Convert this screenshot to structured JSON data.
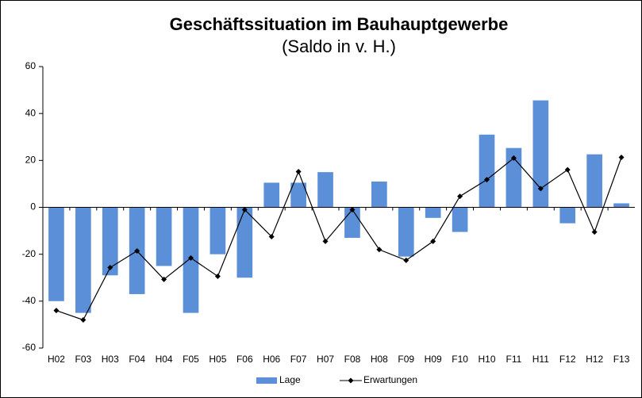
{
  "chart_data": {
    "type": "bar_line",
    "title": "Geschäftssituation im Bauhauptgewerbe",
    "subtitle": "(Saldo in v. H.)",
    "categories": [
      "H02",
      "F03",
      "H03",
      "F04",
      "H04",
      "F05",
      "H05",
      "F06",
      "H06",
      "F07",
      "H07",
      "F08",
      "H08",
      "F09",
      "H09",
      "F10",
      "H10",
      "F11",
      "H11",
      "F12",
      "H12",
      "F13"
    ],
    "series": [
      {
        "name": "Lage",
        "type": "bar",
        "color": "#5b8fd8",
        "values": [
          -40,
          -45,
          -29,
          -37,
          -25,
          -45,
          -20,
          -30,
          10.5,
          10.5,
          15,
          -13,
          11,
          -21,
          -4.5,
          -10.5,
          31,
          25.3,
          45.6,
          -6.8,
          22.6,
          1.7
        ]
      },
      {
        "name": "Erwartungen",
        "type": "line",
        "color": "#000000",
        "values": [
          -44,
          -48,
          -25.7,
          -18.6,
          -30.7,
          -21.6,
          -29.4,
          -1,
          -12.5,
          15.2,
          -14.5,
          -1,
          -18,
          -22.6,
          -14.5,
          4.7,
          11.8,
          21,
          8,
          16,
          -10.5,
          21.3
        ]
      }
    ],
    "ylim": [
      -60,
      60
    ],
    "yticks": [
      -60,
      -40,
      -20,
      0,
      20,
      40,
      60
    ],
    "legend": "bottom"
  }
}
